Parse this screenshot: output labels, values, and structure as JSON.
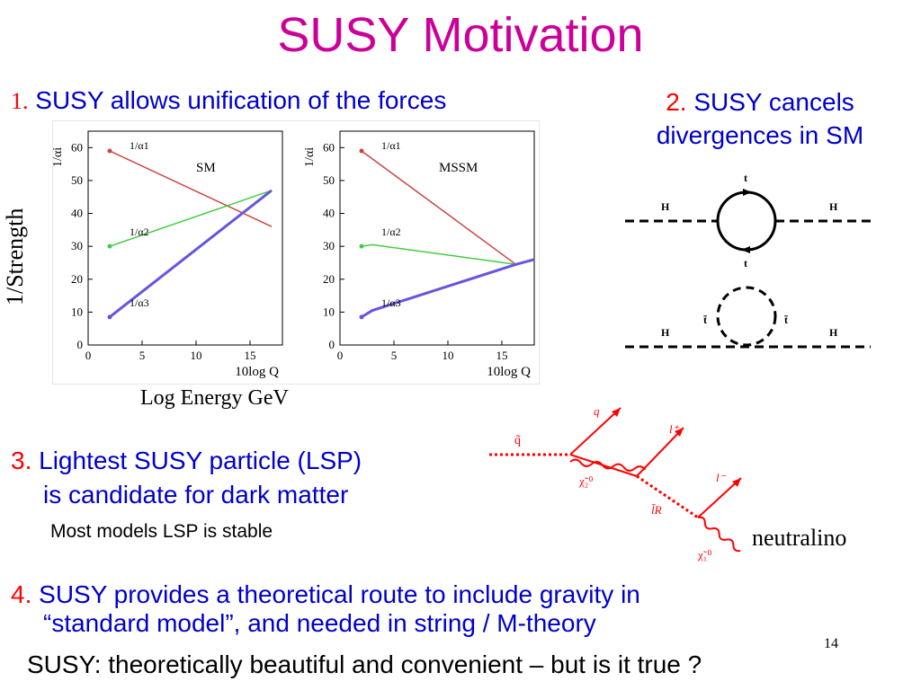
{
  "title": "SUSY Motivation",
  "point1": {
    "num": "1.",
    "text": " SUSY allows unification of the forces"
  },
  "point2": {
    "num": "2.",
    "line1": " SUSY cancels",
    "line2": "divergences in SM"
  },
  "point3": {
    "num": "3.",
    "line1": " Lightest SUSY particle (LSP)",
    "line2": "is candidate for dark matter"
  },
  "note": "Most models LSP is stable",
  "point4": {
    "num": "4.",
    "line1": " SUSY provides a theoretical route to include gravity in",
    "line2": "“standard model”, and needed in string / M-theory"
  },
  "footer": "SUSY: theoretically beautiful and convenient – but is it true ?",
  "page_number": "14",
  "ylabel": "1/Strength",
  "xlabel": "Log Energy GeV",
  "neutralino_label": "neutralino",
  "chart_data": [
    {
      "type": "line",
      "label": "SM",
      "xlabel": "10log Q",
      "ylabel": "1/αi",
      "xlim": [
        0,
        18
      ],
      "ylim": [
        0,
        65
      ],
      "xticks": [
        0,
        5,
        10,
        15
      ],
      "yticks": [
        0,
        10,
        20,
        30,
        40,
        50,
        60
      ],
      "series": [
        {
          "name": "1/α1",
          "color": "#cc4444",
          "x": [
            2,
            17
          ],
          "y": [
            59,
            36
          ]
        },
        {
          "name": "1/α2",
          "color": "#44cc44",
          "x": [
            2,
            17
          ],
          "y": [
            30,
            47
          ]
        },
        {
          "name": "1/α3",
          "color": "#6655dd",
          "x": [
            2,
            17
          ],
          "y": [
            8.5,
            47
          ]
        }
      ]
    },
    {
      "type": "line",
      "label": "MSSM",
      "xlabel": "10log Q",
      "ylabel": "1/αi",
      "xlim": [
        0,
        18
      ],
      "ylim": [
        0,
        65
      ],
      "xticks": [
        0,
        5,
        10,
        15
      ],
      "yticks": [
        0,
        10,
        20,
        30,
        40,
        50,
        60
      ],
      "series": [
        {
          "name": "1/α1",
          "color": "#cc4444",
          "x": [
            2,
            16.3
          ],
          "y": [
            59,
            24.5
          ]
        },
        {
          "name": "1/α2",
          "color": "#44cc44",
          "x": [
            2,
            3,
            16.3
          ],
          "y": [
            30,
            30.5,
            24.5
          ]
        },
        {
          "name": "1/α3",
          "color": "#6655dd",
          "x": [
            2,
            3,
            16.3,
            18
          ],
          "y": [
            8.5,
            10.5,
            24.5,
            26
          ]
        }
      ]
    }
  ],
  "feynman": {
    "top_loop": {
      "h_left": "H",
      "h_right": "H",
      "t_top": "t",
      "t_bottom": "t"
    },
    "stop_loop": {
      "h_left": "H",
      "h_right": "H",
      "st_left": "t̃",
      "st_right": "t̃"
    }
  },
  "decay_chain": {
    "labels": {
      "squark": "q̃",
      "quark": "q",
      "lepton_plus": "l⁺",
      "lepton_minus": "l⁻",
      "chi2": "χ̃₂⁰",
      "slepton": "l̃R",
      "chi1": "χ̃₁⁰"
    }
  },
  "colors": {
    "title": "#cc0099",
    "text": "#0000cc",
    "number": "#ff0000",
    "decay": "#ff0000"
  }
}
